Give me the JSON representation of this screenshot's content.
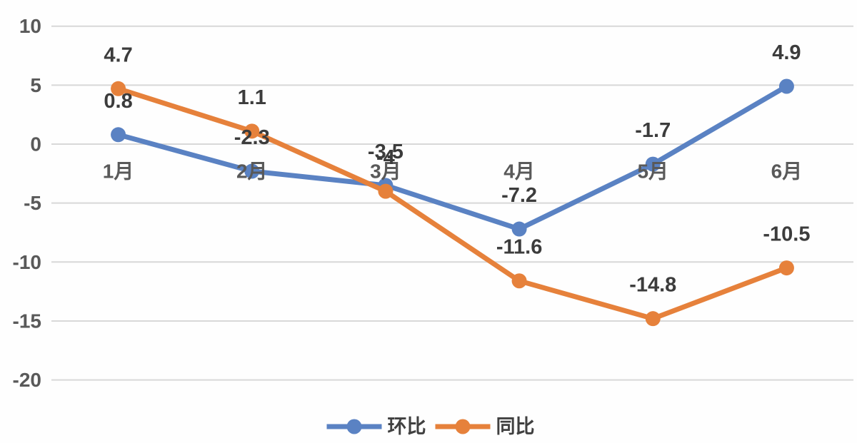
{
  "chart_data": {
    "type": "line",
    "title": "",
    "xlabel": "",
    "ylabel": "",
    "categories": [
      "1月",
      "2月",
      "3月",
      "4月",
      "5月",
      "6月"
    ],
    "series": [
      {
        "id": "mom",
        "name": "环比",
        "color": "#5a82c3",
        "values": [
          0.8,
          -2.3,
          -3.5,
          -7.2,
          -1.7,
          4.9
        ],
        "labels": [
          "0.8",
          "-2.3",
          "-3.5",
          "-7.2",
          "-1.7",
          "4.9"
        ]
      },
      {
        "id": "yoy",
        "name": "同比",
        "color": "#e6813b",
        "values": [
          4.7,
          1.1,
          -4,
          -11.6,
          -14.8,
          -10.5
        ],
        "labels": [
          "4.7",
          "1.1",
          "-4",
          "-11.6",
          "-14.8",
          "-10.5"
        ]
      }
    ],
    "y_ticks": [
      10,
      5,
      0,
      -5,
      -10,
      -15,
      -20
    ],
    "ylim": [
      -20,
      10
    ],
    "grid": true,
    "marker": "circle",
    "legend_position": "bottom"
  },
  "colors": {
    "background": "#fefefe",
    "gridline": "#d8d8d8",
    "tick_label": "#595959",
    "axis_label": "#595959",
    "data_label": "#3c3c3c",
    "legend_label": "#404040"
  }
}
